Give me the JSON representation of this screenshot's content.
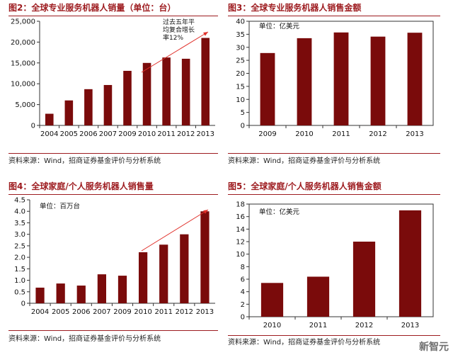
{
  "figures": [
    {
      "title": "图2：全球专业服务机器人销量（单位：台）",
      "source": "资料来源：Wind，招商证券基金评价与分析系统",
      "chart_data": {
        "type": "bar",
        "title": "全球专业服务机器人销量（单位：台）",
        "categories": [
          "2004",
          "2005",
          "2006",
          "2007",
          "2009",
          "2010",
          "2011",
          "2012",
          "2013"
        ],
        "values": [
          2800,
          6000,
          8700,
          9700,
          13100,
          15000,
          16300,
          16000,
          21000
        ],
        "ylim": [
          0,
          25000
        ],
        "yticks": [
          0,
          5000,
          10000,
          15000,
          20000,
          25000
        ],
        "ytick_labels": [
          "0",
          "5,000",
          "10,000",
          "15,000",
          "20,000",
          "25,000"
        ],
        "unit_label": "",
        "annotation": "过去五年平均复合增长率12%",
        "xlabel": "",
        "ylabel": ""
      }
    },
    {
      "title": "图3：全球专业服务机器人销售金额",
      "source": "资料来源：Wind，招商证券基金评价与分析系统",
      "chart_data": {
        "type": "bar",
        "title": "全球专业服务机器人销售金额",
        "categories": [
          "2009",
          "2010",
          "2011",
          "2012",
          "2013"
        ],
        "values": [
          27.8,
          33.5,
          35.7,
          34.1,
          35.6
        ],
        "ylim": [
          0,
          40
        ],
        "yticks": [
          0,
          5,
          10,
          15,
          20,
          25,
          30,
          35,
          40
        ],
        "ytick_labels": [
          "0",
          "5",
          "10",
          "15",
          "20",
          "25",
          "30",
          "35",
          "40"
        ],
        "unit_label": "单位：亿美元",
        "annotation": "",
        "xlabel": "",
        "ylabel": ""
      }
    },
    {
      "title": "图4：全球家庭/个人服务机器人销售量",
      "source": "资料来源：Wind，招商证券基金评价与分析系统",
      "chart_data": {
        "type": "bar",
        "title": "全球家庭/个人服务机器人销售量",
        "categories": [
          "2004",
          "2005",
          "2006",
          "2007",
          "2009",
          "2010",
          "2011",
          "2012",
          "2013"
        ],
        "values": [
          0.68,
          0.86,
          0.77,
          1.26,
          1.2,
          2.22,
          2.55,
          3.0,
          4.0
        ],
        "ylim": [
          0,
          4.5
        ],
        "yticks": [
          0,
          0.5,
          1.0,
          1.5,
          2.0,
          2.5,
          3.0,
          3.5,
          4.0,
          4.5
        ],
        "ytick_labels": [
          "0",
          "0.5",
          "1.0",
          "1.5",
          "2.0",
          "2.5",
          "3.0",
          "3.5",
          "4.0",
          "4.5"
        ],
        "unit_label": "单位：百万台",
        "annotation": "",
        "xlabel": "",
        "ylabel": ""
      }
    },
    {
      "title": "图5：全球家庭/个人服务机器人销售金额",
      "source": "资料来源：Wind，招商证券基金评价与分析系统",
      "chart_data": {
        "type": "bar",
        "title": "全球家庭/个人服务机器人销售金额",
        "categories": [
          "2010",
          "2011",
          "2012",
          "2013"
        ],
        "values": [
          5.4,
          6.4,
          12.0,
          17.0
        ],
        "ylim": [
          0,
          18
        ],
        "yticks": [
          0,
          2,
          4,
          6,
          8,
          10,
          12,
          14,
          16,
          18
        ],
        "ytick_labels": [
          "0",
          "2",
          "4",
          "6",
          "8",
          "10",
          "12",
          "14",
          "16",
          "18"
        ],
        "unit_label": "单位：亿美元",
        "annotation": "",
        "xlabel": "",
        "ylabel": ""
      }
    }
  ],
  "watermark": "新智元",
  "colors": {
    "bar": "#7a0b0b",
    "accent": "#9d1b1f",
    "arrow": "#e0302a",
    "axis": "#333333"
  }
}
